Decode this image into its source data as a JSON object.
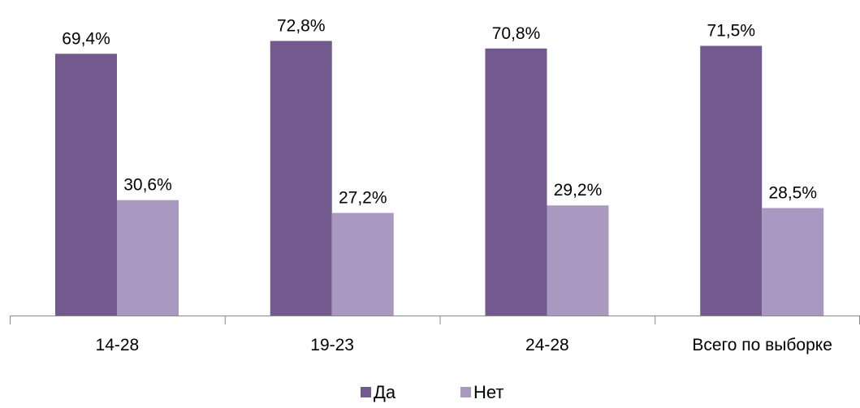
{
  "chart_data": {
    "type": "bar",
    "categories": [
      "14-28",
      "19-23",
      "24-28",
      "Всего по выборке"
    ],
    "series": [
      {
        "name": "Да",
        "values": [
          69.4,
          72.8,
          70.8,
          71.5
        ],
        "labels": [
          "69,4%",
          "72,8%",
          "70,8%",
          "71,5%"
        ],
        "color": "#725a8f"
      },
      {
        "name": "Нет",
        "values": [
          30.6,
          27.2,
          29.2,
          28.5
        ],
        "labels": [
          "30,6%",
          "27,2%",
          "29,2%",
          "28,5%"
        ],
        "color": "#a999c0"
      }
    ],
    "ylim": [
      0,
      100
    ],
    "grid": false,
    "legend": "bottom",
    "axis_color": "#898989"
  }
}
